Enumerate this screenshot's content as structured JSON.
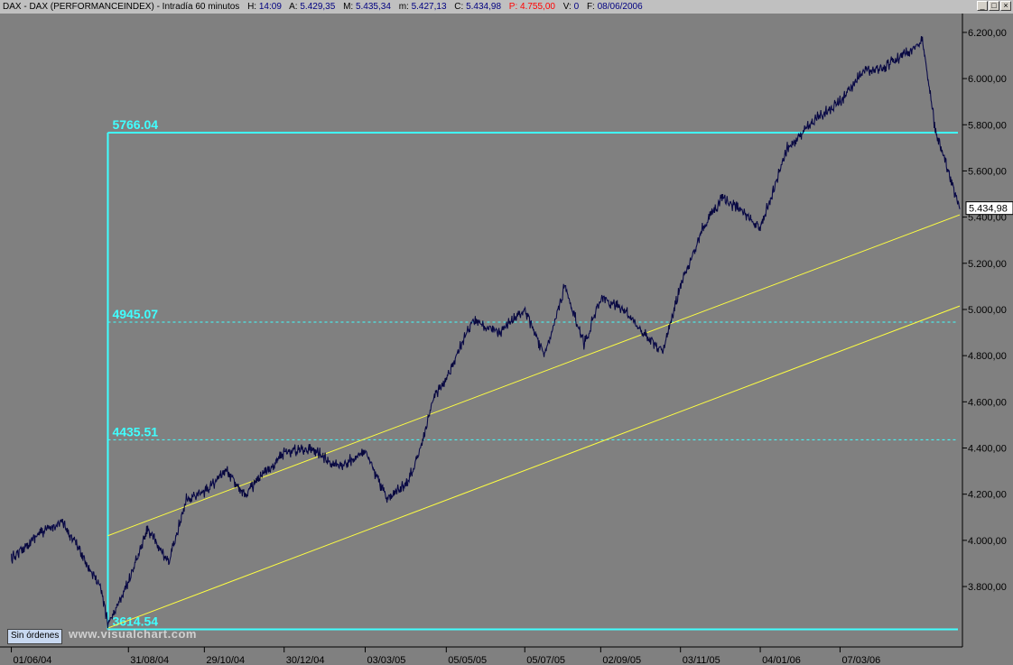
{
  "header": {
    "symbol": "DAX - DAX (PERFORMANCEINDEX) - Intradía 60 minutos",
    "h_label": "H:",
    "h_value": "14:09",
    "a_label": "A:",
    "a_value": "5.429,35",
    "m_label": "M:",
    "m_value": "5.435,34",
    "lo_label": "m:",
    "lo_value": "5.427,13",
    "c_label": "C:",
    "c_value": "5.434,98",
    "p_label": "P:",
    "p_value": "4.755,00",
    "v_label": "V:",
    "v_value": "0",
    "f_label": "F:",
    "f_value": "08/06/2006"
  },
  "window_buttons": {
    "minimize": "_",
    "restore": "□",
    "close": "×"
  },
  "status_badge": "Sin órdenes",
  "watermark": "www.visualchart.com",
  "colors": {
    "background": "#808080",
    "price": "#101060",
    "fib": "#40ffff",
    "channel": "#ffff40"
  },
  "chart_data": {
    "type": "line",
    "title": "",
    "ylim": [
      3550,
      6270
    ],
    "y_ticks": [
      3800,
      4000,
      4200,
      4400,
      4600,
      4800,
      5000,
      5200,
      5400,
      5600,
      5800,
      6000,
      6200
    ],
    "y_tick_labels": [
      "3.800,00",
      "4.000,00",
      "4.200,00",
      "4.400,00",
      "4.600,00",
      "4.800,00",
      "5.000,00",
      "5.200,00",
      "5.400,00",
      "5.600,00",
      "5.800,00",
      "6.000,00",
      "6.200,00"
    ],
    "x_tick_labels": [
      "01/06/04",
      "31/08/04",
      "29/10/04",
      "30/12/04",
      "03/03/05",
      "05/05/05",
      "05/07/05",
      "02/09/05",
      "03/11/05",
      "04/01/06",
      "07/03/06"
    ],
    "last_price_label": "5.434,98",
    "series": [
      {
        "dates": [
          "01/06/04",
          "20/06/04",
          "10/07/04",
          "25/07/04",
          "10/08/04",
          "15/08/04",
          "31/08/04",
          "15/09/04",
          "01/10/04",
          "15/10/04",
          "29/10/04",
          "15/11/04",
          "30/11/04",
          "30/12/04",
          "20/01/05",
          "10/02/05",
          "03/03/05",
          "20/03/05",
          "05/04/05",
          "15/04/05",
          "25/04/05",
          "05/05/05",
          "25/05/05",
          "15/06/05",
          "05/07/05",
          "20/07/05",
          "05/08/05",
          "20/08/05",
          "02/09/05",
          "20/09/05",
          "05/10/05",
          "20/10/05",
          "03/11/05",
          "20/11/05",
          "05/12/05",
          "20/12/05",
          "04/01/06",
          "25/01/06",
          "15/02/06",
          "07/03/06",
          "25/03/06",
          "10/04/06",
          "25/04/06",
          "10/05/06",
          "20/05/06",
          "30/05/06",
          "08/06/06"
        ],
        "values": [
          3920,
          4020,
          4080,
          3950,
          3780,
          3640,
          3820,
          4050,
          3900,
          4180,
          4210,
          4300,
          4200,
          4380,
          4400,
          4320,
          4380,
          4180,
          4250,
          4400,
          4620,
          4700,
          4950,
          4900,
          5000,
          4800,
          5100,
          4850,
          5050,
          5000,
          4900,
          4820,
          5100,
          5350,
          5480,
          5430,
          5350,
          5700,
          5820,
          5900,
          6030,
          6050,
          6100,
          6160,
          5780,
          5600,
          5434.98
        ]
      }
    ],
    "fib_levels": [
      {
        "value": 5766.04,
        "label": "5766.04",
        "style": "solid"
      },
      {
        "value": 4945.07,
        "label": "4945.07",
        "style": "dashed"
      },
      {
        "value": 4435.51,
        "label": "4435.51",
        "style": "dashed"
      },
      {
        "value": 3614.54,
        "label": "3614.54",
        "style": "solid"
      }
    ],
    "fib_start_date": "15/08/04",
    "channel_lines": [
      {
        "name": "upper",
        "start": {
          "date": "15/08/04",
          "value": 4020
        },
        "end": {
          "date": "08/06/06",
          "value": 5410
        }
      },
      {
        "name": "lower",
        "start": {
          "date": "15/08/04",
          "value": 3620
        },
        "end": {
          "date": "08/06/06",
          "value": 5015
        }
      }
    ]
  }
}
